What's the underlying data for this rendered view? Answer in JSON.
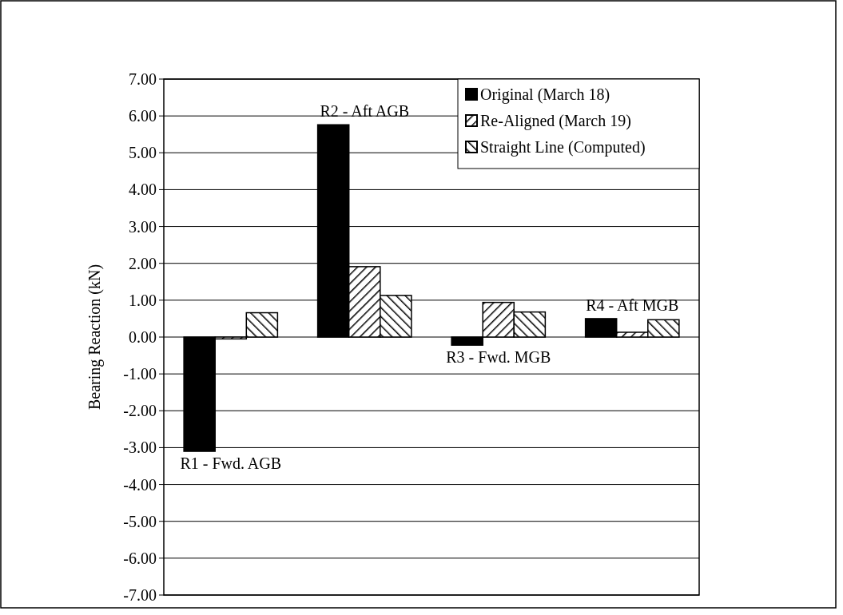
{
  "chart_data": {
    "type": "bar",
    "ylabel": "Bearing Reaction (kN)",
    "categories": [
      "R1 - Fwd. AGB",
      "R2 - Aft AGB",
      "R3 - Fwd. MGB",
      "R4 - Aft MGB"
    ],
    "series": [
      {
        "name": "Original (March 18)",
        "color": "#000000",
        "values": [
          -3.1,
          5.76,
          -0.22,
          0.5
        ]
      },
      {
        "name": "Re-Aligned (March 19)",
        "color": "#000000",
        "values": [
          -0.05,
          1.91,
          0.94,
          0.13
        ]
      },
      {
        "name": "Straight Line (Computed)",
        "color": "#000000",
        "values": [
          0.66,
          1.13,
          0.68,
          0.47
        ]
      }
    ],
    "ylim": [
      -7,
      7
    ],
    "yticks": [
      {
        "value": -7,
        "label": "-7.00"
      },
      {
        "value": -6,
        "label": "-6.00"
      },
      {
        "value": -5,
        "label": "-5.00"
      },
      {
        "value": -4,
        "label": "-4.00"
      },
      {
        "value": -3,
        "label": "-3.00"
      },
      {
        "value": -2,
        "label": "-2.00"
      },
      {
        "value": -1,
        "label": "-1.00"
      },
      {
        "value": 0,
        "label": "0.00"
      },
      {
        "value": 1,
        "label": "1.00"
      },
      {
        "value": 2,
        "label": "2.00"
      },
      {
        "value": 3,
        "label": "3.00"
      },
      {
        "value": 4,
        "label": "4.00"
      },
      {
        "value": 5,
        "label": "5.00"
      },
      {
        "value": 6,
        "label": "6.00"
      },
      {
        "value": 7,
        "label": "7.00"
      }
    ],
    "grid": "y",
    "legend": "top right"
  }
}
